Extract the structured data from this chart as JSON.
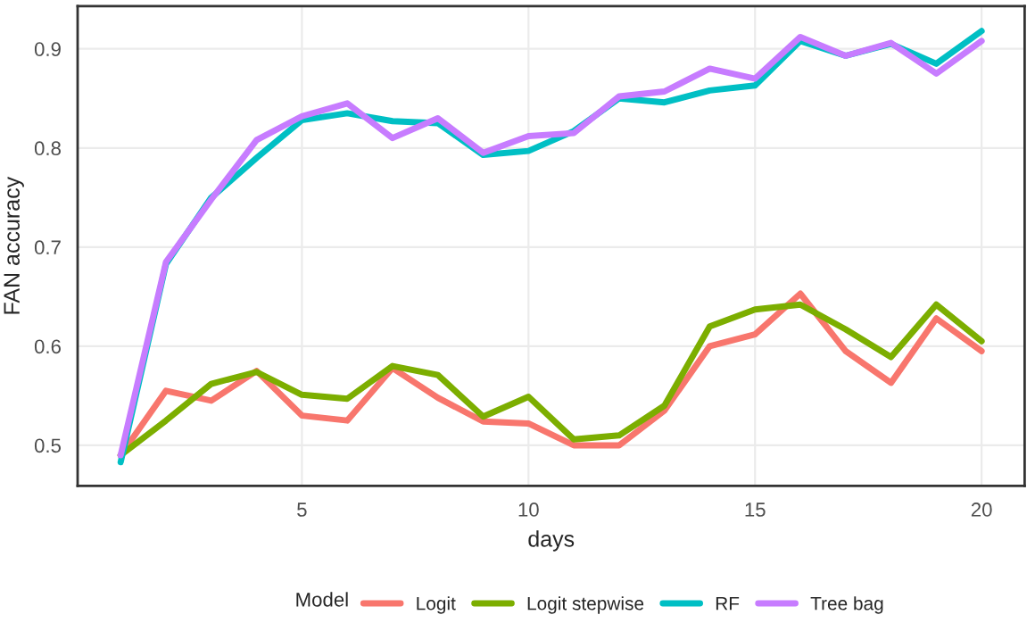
{
  "chart_data": {
    "type": "line",
    "xlabel": "days",
    "ylabel": "FAN accuracy",
    "legend_title": "Model",
    "x": [
      1,
      2,
      3,
      4,
      5,
      6,
      7,
      8,
      9,
      10,
      11,
      12,
      13,
      14,
      15,
      16,
      17,
      18,
      19,
      20
    ],
    "series": [
      {
        "name": "Logit",
        "color": "#f8766d",
        "values": [
          0.49,
          0.555,
          0.545,
          0.575,
          0.53,
          0.525,
          0.578,
          0.548,
          0.524,
          0.522,
          0.5,
          0.5,
          0.535,
          0.6,
          0.612,
          0.653,
          0.595,
          0.563,
          0.628,
          0.595
        ]
      },
      {
        "name": "Logit stepwise",
        "color": "#7cae00",
        "values": [
          0.49,
          0.525,
          0.562,
          0.574,
          0.551,
          0.547,
          0.58,
          0.571,
          0.529,
          0.549,
          0.506,
          0.51,
          0.54,
          0.62,
          0.637,
          0.642,
          0.617,
          0.589,
          0.642,
          0.605
        ]
      },
      {
        "name": "RF",
        "color": "#00bfc4",
        "values": [
          0.483,
          0.683,
          0.75,
          0.79,
          0.828,
          0.835,
          0.827,
          0.825,
          0.793,
          0.797,
          0.817,
          0.85,
          0.846,
          0.858,
          0.863,
          0.908,
          0.893,
          0.905,
          0.885,
          0.918
        ]
      },
      {
        "name": "Tree bag",
        "color": "#c77cff",
        "values": [
          0.49,
          0.685,
          0.748,
          0.808,
          0.832,
          0.845,
          0.81,
          0.83,
          0.795,
          0.812,
          0.815,
          0.852,
          0.857,
          0.88,
          0.87,
          0.912,
          0.893,
          0.906,
          0.875,
          0.908
        ]
      }
    ],
    "xlim": [
      0.05,
      20.95
    ],
    "xticks": [
      5,
      10,
      15,
      20
    ],
    "ylim": [
      0.459,
      0.943
    ],
    "yticks": [
      0.5,
      0.6,
      0.7,
      0.8,
      0.9
    ],
    "grid": true,
    "legend": "bottom",
    "marker": "none",
    "line_style": "solid"
  }
}
